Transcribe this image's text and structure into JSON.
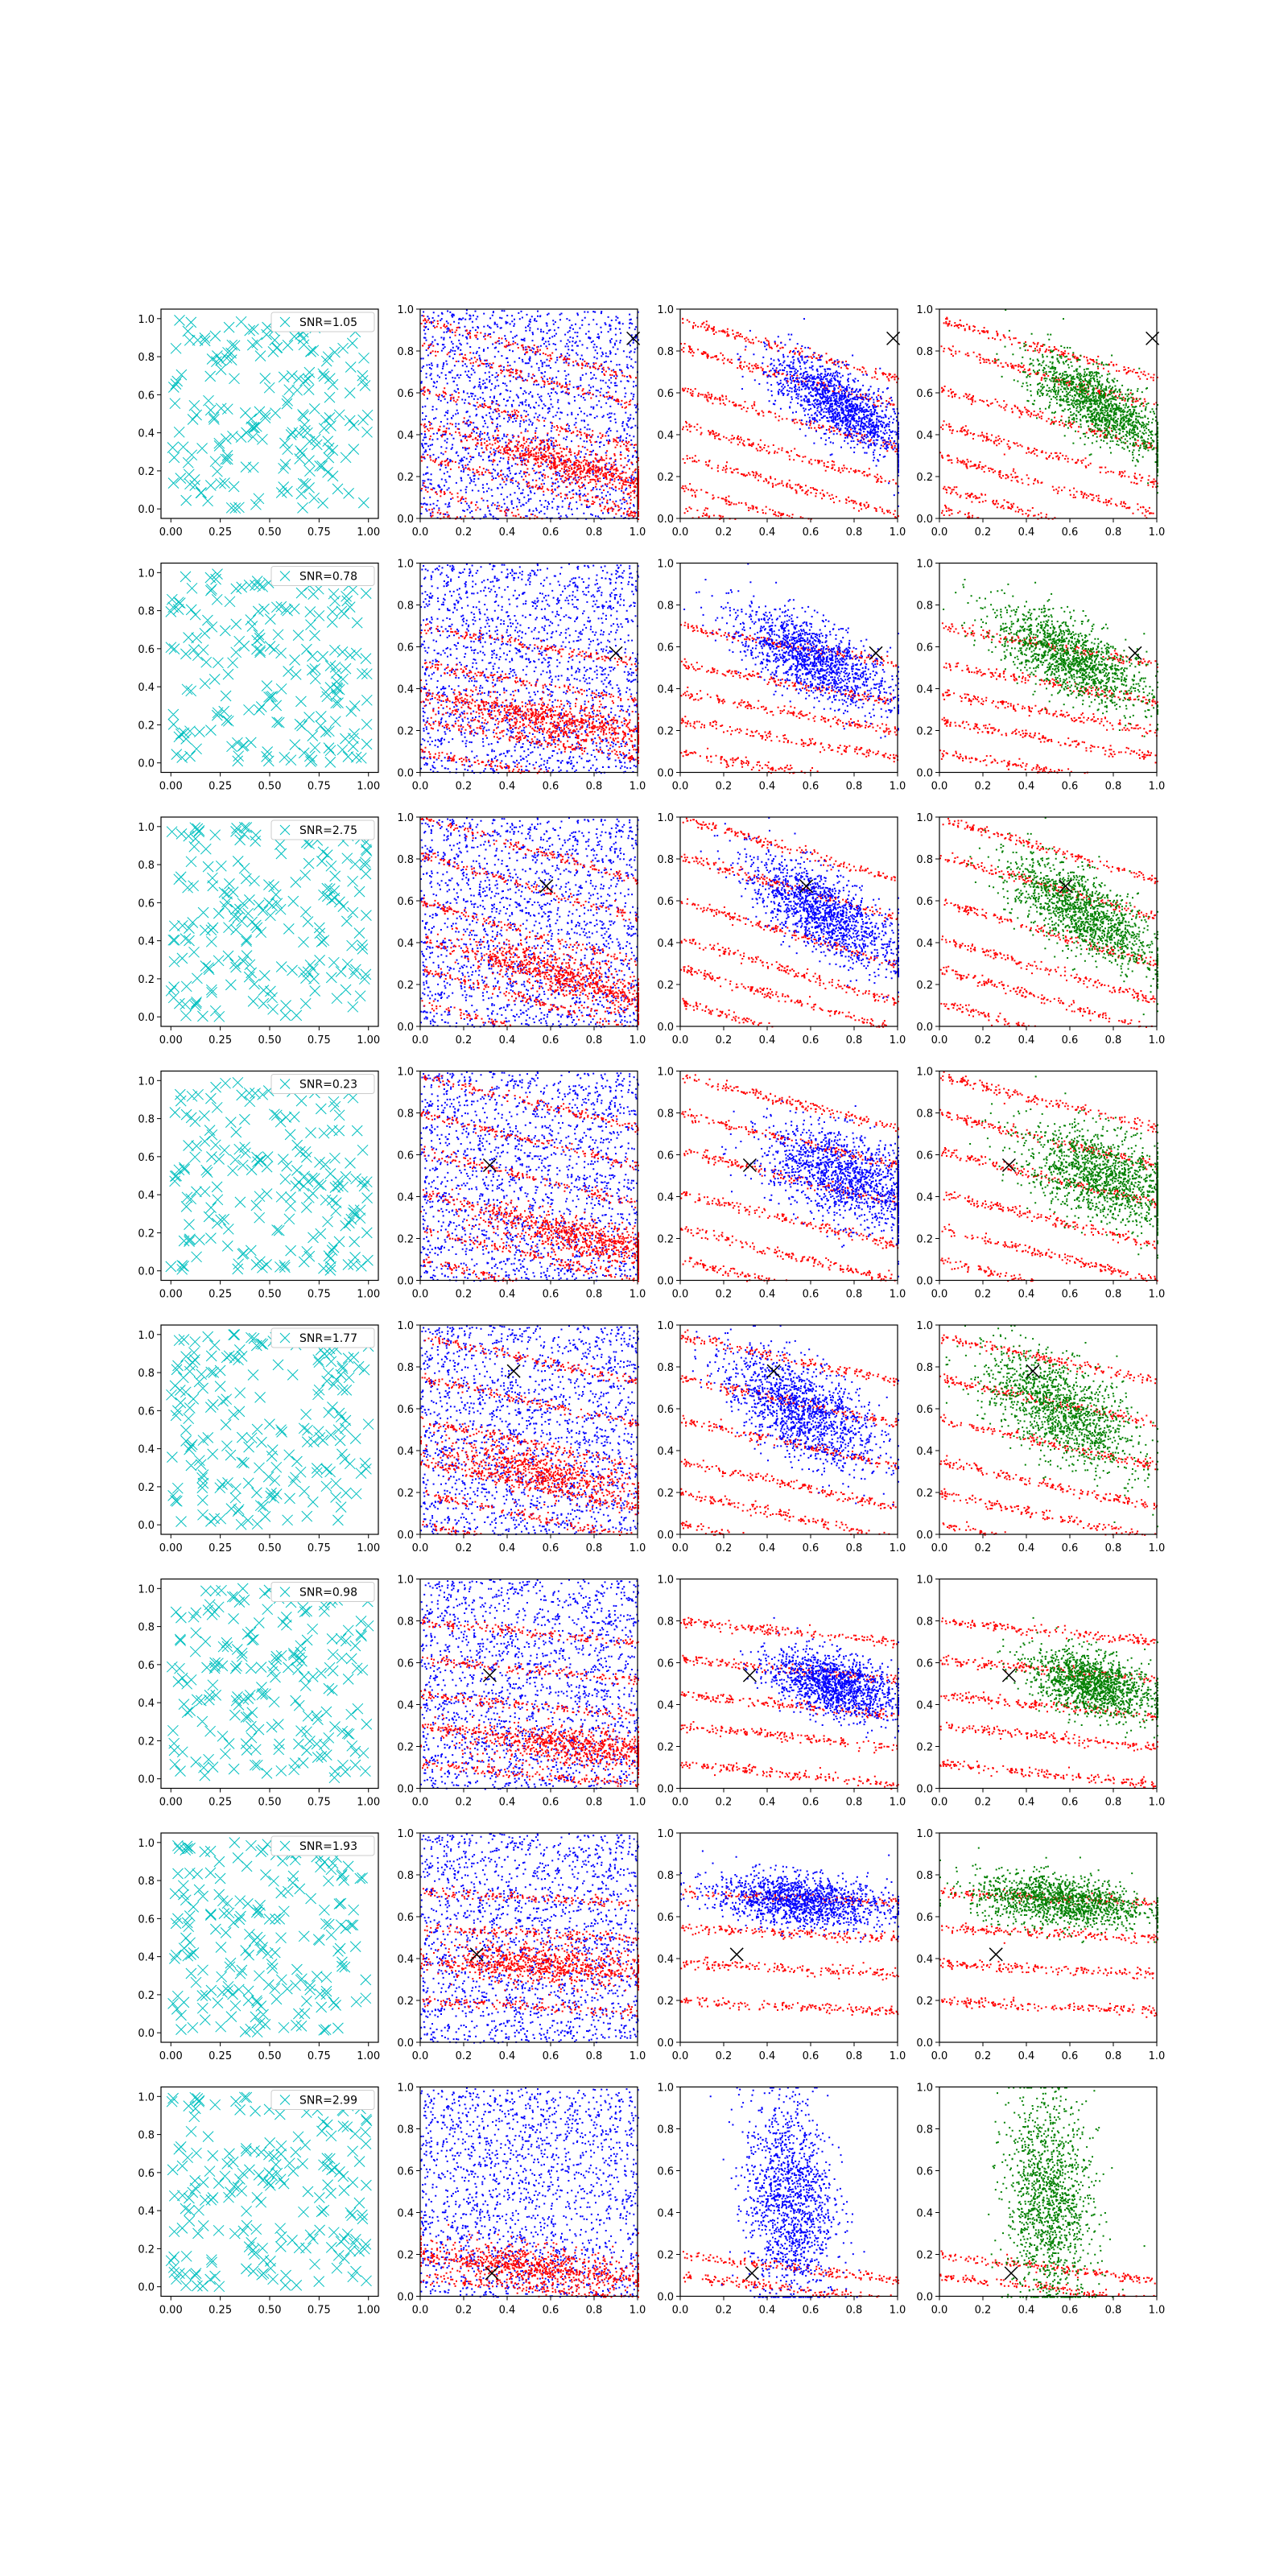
{
  "figure": {
    "rows": 8,
    "cols": 4,
    "colors": {
      "cyan": "#00BFBF",
      "red": "#FF0000",
      "blue": "#0000FF",
      "green": "#008000",
      "marker": "#000000",
      "axis": "#000000",
      "legend_border": "#CCCCCC"
    }
  },
  "chart_data": [
    {
      "panel": "row1-col1",
      "type": "scatter",
      "series": [
        {
          "name": "SNR=1.05",
          "marker": "x",
          "color": "#00BFBF",
          "n_points": 200
        }
      ],
      "xlim": [
        0,
        1
      ],
      "ylim": [
        0,
        1
      ],
      "xticks": [
        "0.00",
        "0.25",
        "0.50",
        "0.75",
        "1.00"
      ],
      "yticks": [
        "0.0",
        "0.2",
        "0.4",
        "0.6",
        "0.8",
        "1.0"
      ],
      "legend": "top-right"
    },
    {
      "panel": "row1-col2",
      "type": "scatter",
      "series": [
        {
          "color": "#0000FF",
          "pattern": "uniform"
        },
        {
          "color": "#FF0000",
          "pattern": "stripes"
        }
      ],
      "xlim": [
        0,
        1
      ],
      "ylim": [
        0,
        1
      ],
      "marker_x": [
        0.98,
        0.86
      ],
      "xticks": [
        "0.0",
        "0.2",
        "0.4",
        "0.6",
        "0.8",
        "1.0"
      ],
      "yticks": [
        "0.0",
        "0.2",
        "0.4",
        "0.6",
        "0.8",
        "1.0"
      ]
    },
    {
      "panel": "row1-col3",
      "type": "scatter",
      "series": [
        {
          "color": "#FF0000",
          "pattern": "stripes"
        },
        {
          "color": "#0000FF",
          "pattern": "blob"
        }
      ],
      "xlim": [
        0,
        1
      ],
      "ylim": [
        0,
        1
      ],
      "marker_x": [
        0.98,
        0.86
      ]
    },
    {
      "panel": "row1-col4",
      "type": "scatter",
      "series": [
        {
          "color": "#FF0000",
          "pattern": "stripes"
        },
        {
          "color": "#008000",
          "pattern": "blob"
        }
      ],
      "xlim": [
        0,
        1
      ],
      "ylim": [
        0,
        1
      ],
      "marker_x": [
        0.98,
        0.86
      ]
    },
    {
      "panel": "row2-col1",
      "type": "scatter",
      "series": [
        {
          "name": "SNR=0.78",
          "marker": "x",
          "color": "#00BFBF",
          "n_points": 200
        }
      ],
      "xlim": [
        0,
        1
      ],
      "ylim": [
        0,
        1
      ],
      "legend": "top-right"
    },
    {
      "panel": "row2-col2",
      "type": "scatter",
      "series": [
        {
          "color": "#0000FF"
        },
        {
          "color": "#FF0000"
        }
      ],
      "xlim": [
        0,
        1
      ],
      "ylim": [
        0,
        1
      ],
      "marker_x": [
        0.9,
        0.57
      ]
    },
    {
      "panel": "row2-col3",
      "type": "scatter",
      "series": [
        {
          "color": "#FF0000"
        },
        {
          "color": "#0000FF"
        }
      ],
      "xlim": [
        0,
        1
      ],
      "ylim": [
        0,
        1
      ],
      "marker_x": [
        0.9,
        0.57
      ]
    },
    {
      "panel": "row2-col4",
      "type": "scatter",
      "series": [
        {
          "color": "#FF0000"
        },
        {
          "color": "#008000"
        }
      ],
      "xlim": [
        0,
        1
      ],
      "ylim": [
        0,
        1
      ],
      "marker_x": [
        0.9,
        0.57
      ]
    },
    {
      "panel": "row3-col1",
      "type": "scatter",
      "series": [
        {
          "name": "SNR=2.75",
          "marker": "x",
          "color": "#00BFBF",
          "n_points": 200
        }
      ],
      "xlim": [
        0,
        1
      ],
      "ylim": [
        0,
        1
      ],
      "legend": "top-right"
    },
    {
      "panel": "row3-col2",
      "type": "scatter",
      "series": [
        {
          "color": "#0000FF"
        },
        {
          "color": "#FF0000"
        }
      ],
      "xlim": [
        0,
        1
      ],
      "ylim": [
        0,
        1
      ],
      "marker_x": [
        0.58,
        0.67
      ]
    },
    {
      "panel": "row3-col3",
      "type": "scatter",
      "series": [
        {
          "color": "#FF0000"
        },
        {
          "color": "#0000FF"
        }
      ],
      "xlim": [
        0,
        1
      ],
      "ylim": [
        0,
        1
      ],
      "marker_x": [
        0.58,
        0.67
      ]
    },
    {
      "panel": "row3-col4",
      "type": "scatter",
      "series": [
        {
          "color": "#FF0000"
        },
        {
          "color": "#008000"
        }
      ],
      "xlim": [
        0,
        1
      ],
      "ylim": [
        0,
        1
      ],
      "marker_x": [
        0.58,
        0.67
      ]
    },
    {
      "panel": "row4-col1",
      "type": "scatter",
      "series": [
        {
          "name": "SNR=0.23",
          "marker": "x",
          "color": "#00BFBF",
          "n_points": 200
        }
      ],
      "xlim": [
        0,
        1
      ],
      "ylim": [
        0,
        1
      ],
      "legend": "top-right"
    },
    {
      "panel": "row4-col2",
      "type": "scatter",
      "series": [
        {
          "color": "#0000FF"
        },
        {
          "color": "#FF0000"
        }
      ],
      "xlim": [
        0,
        1
      ],
      "ylim": [
        0,
        1
      ],
      "marker_x": [
        0.32,
        0.55
      ]
    },
    {
      "panel": "row4-col3",
      "type": "scatter",
      "series": [
        {
          "color": "#FF0000"
        },
        {
          "color": "#0000FF"
        }
      ],
      "xlim": [
        0,
        1
      ],
      "ylim": [
        0,
        1
      ],
      "marker_x": [
        0.32,
        0.55
      ]
    },
    {
      "panel": "row4-col4",
      "type": "scatter",
      "series": [
        {
          "color": "#FF0000"
        },
        {
          "color": "#008000"
        }
      ],
      "xlim": [
        0,
        1
      ],
      "ylim": [
        0,
        1
      ],
      "marker_x": [
        0.32,
        0.55
      ]
    },
    {
      "panel": "row5-col1",
      "type": "scatter",
      "series": [
        {
          "name": "SNR=1.77",
          "marker": "x",
          "color": "#00BFBF",
          "n_points": 200
        }
      ],
      "xlim": [
        0,
        1
      ],
      "ylim": [
        0,
        1
      ],
      "legend": "top-right"
    },
    {
      "panel": "row5-col2",
      "type": "scatter",
      "series": [
        {
          "color": "#0000FF"
        },
        {
          "color": "#FF0000"
        }
      ],
      "xlim": [
        0,
        1
      ],
      "ylim": [
        0,
        1
      ],
      "marker_x": [
        0.43,
        0.78
      ]
    },
    {
      "panel": "row5-col3",
      "type": "scatter",
      "series": [
        {
          "color": "#FF0000"
        },
        {
          "color": "#0000FF"
        }
      ],
      "xlim": [
        0,
        1
      ],
      "ylim": [
        0,
        1
      ],
      "marker_x": [
        0.43,
        0.78
      ]
    },
    {
      "panel": "row5-col4",
      "type": "scatter",
      "series": [
        {
          "color": "#FF0000"
        },
        {
          "color": "#008000"
        }
      ],
      "xlim": [
        0,
        1
      ],
      "ylim": [
        0,
        1
      ],
      "marker_x": [
        0.43,
        0.78
      ]
    },
    {
      "panel": "row6-col1",
      "type": "scatter",
      "series": [
        {
          "name": "SNR=0.98",
          "marker": "x",
          "color": "#00BFBF",
          "n_points": 200
        }
      ],
      "xlim": [
        0,
        1
      ],
      "ylim": [
        0,
        1
      ],
      "legend": "top-right"
    },
    {
      "panel": "row6-col2",
      "type": "scatter",
      "series": [
        {
          "color": "#0000FF"
        },
        {
          "color": "#FF0000"
        }
      ],
      "xlim": [
        0,
        1
      ],
      "ylim": [
        0,
        1
      ],
      "marker_x": [
        0.32,
        0.54
      ]
    },
    {
      "panel": "row6-col3",
      "type": "scatter",
      "series": [
        {
          "color": "#FF0000"
        },
        {
          "color": "#0000FF"
        }
      ],
      "xlim": [
        0,
        1
      ],
      "ylim": [
        0,
        1
      ],
      "marker_x": [
        0.32,
        0.54
      ]
    },
    {
      "panel": "row6-col4",
      "type": "scatter",
      "series": [
        {
          "color": "#FF0000"
        },
        {
          "color": "#008000"
        }
      ],
      "xlim": [
        0,
        1
      ],
      "ylim": [
        0,
        1
      ],
      "marker_x": [
        0.32,
        0.54
      ]
    },
    {
      "panel": "row7-col1",
      "type": "scatter",
      "series": [
        {
          "name": "SNR=1.93",
          "marker": "x",
          "color": "#00BFBF",
          "n_points": 200
        }
      ],
      "xlim": [
        0,
        1
      ],
      "ylim": [
        0,
        1
      ],
      "legend": "top-right"
    },
    {
      "panel": "row7-col2",
      "type": "scatter",
      "series": [
        {
          "color": "#0000FF"
        },
        {
          "color": "#FF0000"
        }
      ],
      "xlim": [
        0,
        1
      ],
      "ylim": [
        0,
        1
      ],
      "marker_x": [
        0.26,
        0.42
      ]
    },
    {
      "panel": "row7-col3",
      "type": "scatter",
      "series": [
        {
          "color": "#FF0000"
        },
        {
          "color": "#0000FF"
        }
      ],
      "xlim": [
        0,
        1
      ],
      "ylim": [
        0,
        1
      ],
      "marker_x": [
        0.26,
        0.42
      ]
    },
    {
      "panel": "row7-col4",
      "type": "scatter",
      "series": [
        {
          "color": "#FF0000"
        },
        {
          "color": "#008000"
        }
      ],
      "xlim": [
        0,
        1
      ],
      "ylim": [
        0,
        1
      ],
      "marker_x": [
        0.26,
        0.42
      ]
    },
    {
      "panel": "row8-col1",
      "type": "scatter",
      "series": [
        {
          "name": "SNR=2.99",
          "marker": "x",
          "color": "#00BFBF",
          "n_points": 200
        }
      ],
      "xlim": [
        0,
        1
      ],
      "ylim": [
        0,
        1
      ],
      "legend": "top-right"
    },
    {
      "panel": "row8-col2",
      "type": "scatter",
      "series": [
        {
          "color": "#0000FF"
        },
        {
          "color": "#FF0000"
        }
      ],
      "xlim": [
        0,
        1
      ],
      "ylim": [
        0,
        1
      ],
      "marker_x": [
        0.33,
        0.11
      ]
    },
    {
      "panel": "row8-col3",
      "type": "scatter",
      "series": [
        {
          "color": "#FF0000"
        },
        {
          "color": "#0000FF"
        }
      ],
      "xlim": [
        0,
        1
      ],
      "ylim": [
        0,
        1
      ],
      "marker_x": [
        0.33,
        0.11
      ]
    },
    {
      "panel": "row8-col4",
      "type": "scatter",
      "series": [
        {
          "color": "#FF0000"
        },
        {
          "color": "#008000"
        }
      ],
      "xlim": [
        0,
        1
      ],
      "ylim": [
        0,
        1
      ],
      "marker_x": [
        0.33,
        0.11
      ]
    }
  ],
  "axes": {
    "col1_xticks": [
      "0.00",
      "0.25",
      "0.50",
      "0.75",
      "1.00"
    ],
    "other_xticks": [
      "0.0",
      "0.2",
      "0.4",
      "0.6",
      "0.8",
      "1.0"
    ],
    "yticks": [
      "0.0",
      "0.2",
      "0.4",
      "0.6",
      "0.8",
      "1.0"
    ]
  }
}
